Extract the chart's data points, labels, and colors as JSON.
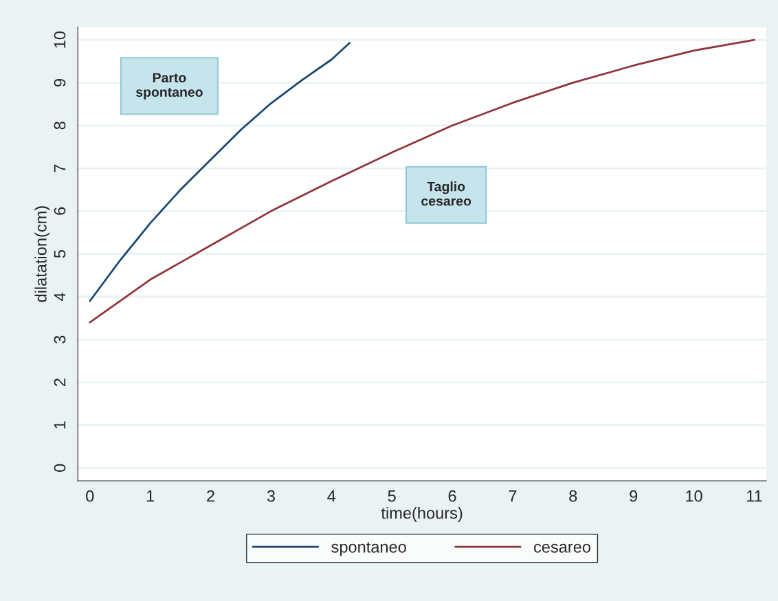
{
  "chart_data": {
    "type": "line",
    "xlabel": "time(hours)",
    "ylabel": "dilatation(cm)",
    "xlim": [
      -0.2,
      11.2
    ],
    "ylim": [
      -0.3,
      10.3
    ],
    "xticks": [
      0,
      1,
      2,
      3,
      4,
      5,
      6,
      7,
      8,
      9,
      10,
      11
    ],
    "yticks": [
      0,
      1,
      2,
      3,
      4,
      5,
      6,
      7,
      8,
      9,
      10
    ],
    "grid": "y",
    "legend": "bottom",
    "marker": "none",
    "line_style": "solid",
    "annotations": [
      "Parto\nspontaneo",
      "Taglio\ncesareo"
    ],
    "series": [
      {
        "name": "spontaneo",
        "color": "#1a476f",
        "x": [
          0,
          0.5,
          1,
          1.5,
          2,
          2.5,
          3,
          3.5,
          4,
          4.3
        ],
        "values": [
          3.9,
          4.85,
          5.72,
          6.5,
          7.2,
          7.9,
          8.52,
          9.05,
          9.54,
          9.93
        ]
      },
      {
        "name": "cesareo",
        "color": "#90353b",
        "x": [
          0,
          1,
          2,
          3,
          4,
          5,
          6,
          7,
          8,
          9,
          10,
          11
        ],
        "values": [
          3.4,
          4.4,
          5.2,
          6.0,
          6.7,
          7.37,
          8.0,
          8.53,
          9.0,
          9.4,
          9.75,
          10.0
        ]
      }
    ]
  }
}
